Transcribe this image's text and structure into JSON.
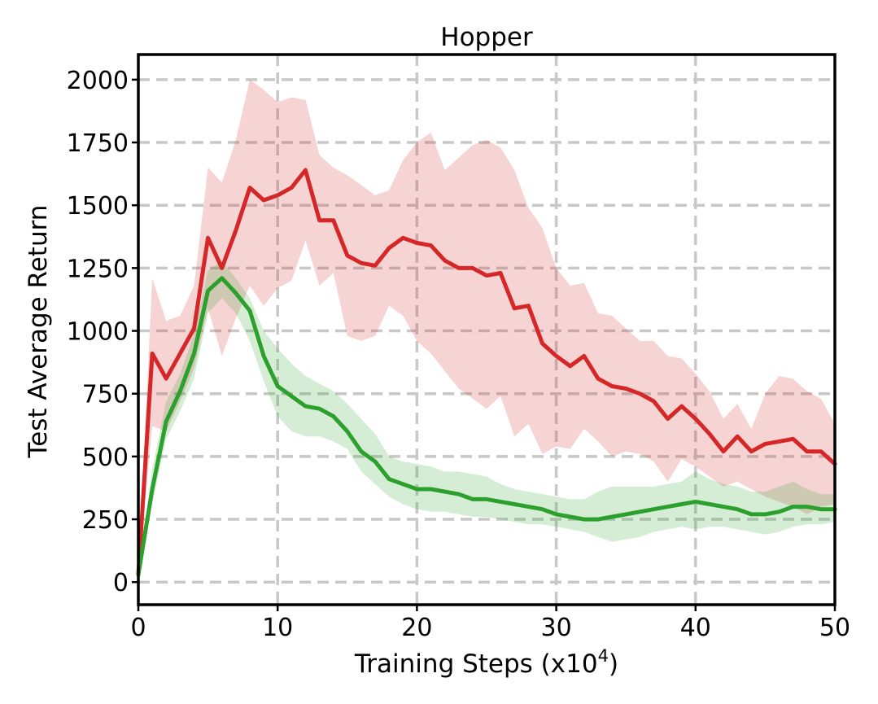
{
  "chart_data": {
    "type": "line",
    "title": "Hopper",
    "xlabel": "Training Steps (x10",
    "xlabel_superscript": "4",
    "xlabel_suffix": ")",
    "ylabel": "Test Average Return",
    "xlim": [
      0,
      50
    ],
    "ylim": [
      -90,
      2100
    ],
    "xticks": [
      0,
      10,
      20,
      30,
      40,
      50
    ],
    "yticks": [
      0,
      250,
      500,
      750,
      1000,
      1250,
      1500,
      1750,
      2000
    ],
    "grid": true,
    "x": [
      0,
      1,
      2,
      3,
      4,
      5,
      6,
      7,
      8,
      9,
      10,
      11,
      12,
      13,
      14,
      15,
      16,
      17,
      18,
      19,
      20,
      21,
      22,
      23,
      24,
      25,
      26,
      27,
      28,
      29,
      30,
      31,
      32,
      33,
      34,
      35,
      36,
      37,
      38,
      39,
      40,
      41,
      42,
      43,
      44,
      45,
      46,
      47,
      48,
      49,
      50
    ],
    "series": [
      {
        "color": "#d62728",
        "band_color": "rgba(214,39,40,0.2)",
        "values": [
          30,
          910,
          810,
          910,
          1010,
          1370,
          1250,
          1400,
          1570,
          1520,
          1540,
          1570,
          1640,
          1440,
          1440,
          1300,
          1270,
          1260,
          1330,
          1370,
          1350,
          1340,
          1280,
          1250,
          1250,
          1220,
          1230,
          1090,
          1100,
          950,
          900,
          860,
          900,
          810,
          780,
          770,
          750,
          720,
          650,
          700,
          650,
          590,
          520,
          580,
          520,
          550,
          560,
          570,
          520,
          520,
          470
        ],
        "upper": [
          30,
          1210,
          1040,
          1060,
          1180,
          1650,
          1590,
          1760,
          2000,
          1960,
          1910,
          1930,
          1920,
          1700,
          1650,
          1620,
          1580,
          1540,
          1560,
          1680,
          1750,
          1790,
          1640,
          1690,
          1740,
          1760,
          1730,
          1640,
          1490,
          1410,
          1250,
          1180,
          1190,
          1070,
          1060,
          1010,
          960,
          960,
          900,
          890,
          830,
          760,
          650,
          710,
          610,
          750,
          820,
          810,
          760,
          730,
          630
        ],
        "lower": [
          30,
          620,
          600,
          720,
          850,
          1090,
          900,
          1050,
          1180,
          1100,
          1170,
          1200,
          1360,
          1180,
          1230,
          980,
          960,
          980,
          1100,
          1060,
          960,
          910,
          840,
          770,
          730,
          690,
          740,
          580,
          630,
          510,
          540,
          530,
          610,
          560,
          500,
          520,
          510,
          480,
          400,
          490,
          460,
          420,
          380,
          400,
          370,
          340,
          320,
          300,
          270,
          300,
          310
        ]
      },
      {
        "color": "#2ca02c",
        "band_color": "rgba(44,160,44,0.2)",
        "values": [
          30,
          370,
          640,
          760,
          910,
          1160,
          1210,
          1150,
          1080,
          900,
          780,
          740,
          700,
          690,
          660,
          600,
          520,
          480,
          410,
          390,
          370,
          370,
          360,
          350,
          330,
          330,
          320,
          310,
          300,
          290,
          270,
          260,
          250,
          250,
          260,
          270,
          280,
          290,
          300,
          310,
          320,
          310,
          300,
          290,
          270,
          270,
          280,
          300,
          300,
          290,
          290
        ],
        "upper": [
          30,
          450,
          720,
          830,
          990,
          1240,
          1280,
          1210,
          1130,
          1000,
          930,
          870,
          820,
          790,
          760,
          710,
          650,
          590,
          500,
          480,
          470,
          460,
          440,
          440,
          430,
          420,
          390,
          370,
          360,
          350,
          340,
          330,
          330,
          360,
          380,
          380,
          380,
          380,
          390,
          400,
          440,
          410,
          390,
          380,
          360,
          360,
          380,
          400,
          370,
          350,
          350
        ],
        "lower": [
          30,
          310,
          570,
          680,
          810,
          1070,
          1130,
          1070,
          960,
          800,
          660,
          600,
          580,
          580,
          560,
          530,
          440,
          390,
          340,
          310,
          290,
          280,
          280,
          270,
          260,
          260,
          250,
          240,
          230,
          230,
          220,
          210,
          200,
          180,
          160,
          170,
          180,
          200,
          210,
          220,
          210,
          220,
          220,
          210,
          200,
          190,
          200,
          220,
          230,
          230,
          240
        ]
      }
    ]
  }
}
